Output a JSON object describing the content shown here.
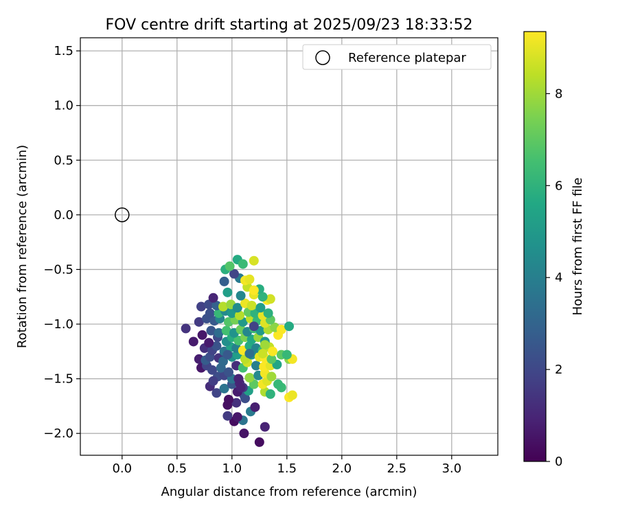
{
  "chart_data": {
    "type": "scatter",
    "title": "FOV centre drift starting at 2025/09/23 18:33:52",
    "xlabel": "Angular distance from reference (arcmin)",
    "ylabel": "Rotation from reference (arcmin)",
    "xlim": [
      -0.38,
      3.42
    ],
    "ylim": [
      -2.2,
      1.62
    ],
    "x_ticks": [
      0.0,
      0.5,
      1.0,
      1.5,
      2.0,
      2.5,
      3.0
    ],
    "x_tick_labels": [
      "0.0",
      "0.5",
      "1.0",
      "1.5",
      "2.0",
      "2.5",
      "3.0"
    ],
    "y_ticks": [
      1.5,
      1.0,
      0.5,
      0.0,
      -0.5,
      -1.0,
      -1.5,
      -2.0
    ],
    "y_tick_labels": [
      "1.5",
      "1.0",
      "0.5",
      "0.0",
      "−0.5",
      "−1.0",
      "−1.5",
      "−2.0"
    ],
    "grid": true,
    "legend": {
      "position": "top-right",
      "entries": [
        "Reference platepar"
      ]
    },
    "reference_point": {
      "x": 0.0,
      "y": 0.0
    },
    "colorbar": {
      "label": "Hours from first FF file",
      "range": [
        0,
        9.35
      ],
      "ticks": [
        0,
        2,
        4,
        6,
        8
      ],
      "tick_labels": [
        "0",
        "2",
        "4",
        "6",
        "8"
      ],
      "colormap": "viridis"
    },
    "points_xyc": [
      [
        1.25,
        -2.08,
        0.3
      ],
      [
        1.11,
        -2.0,
        0.5
      ],
      [
        1.3,
        -1.94,
        0.9
      ],
      [
        1.02,
        -1.89,
        0.3
      ],
      [
        1.1,
        -1.88,
        3.6
      ],
      [
        1.05,
        -1.85,
        0.6
      ],
      [
        0.96,
        -1.84,
        1.6
      ],
      [
        1.17,
        -1.8,
        3.8
      ],
      [
        0.96,
        -1.74,
        0.4
      ],
      [
        1.04,
        -1.72,
        1.3
      ],
      [
        0.97,
        -1.69,
        0.4
      ],
      [
        1.12,
        -1.68,
        2.2
      ],
      [
        1.21,
        -1.76,
        0.8
      ],
      [
        1.11,
        -1.65,
        2.3
      ],
      [
        1.05,
        -1.62,
        0.7
      ],
      [
        0.86,
        -1.63,
        1.9
      ],
      [
        1.15,
        -1.61,
        5.3
      ],
      [
        1.3,
        -1.62,
        8.2
      ],
      [
        1.35,
        -1.64,
        6.0
      ],
      [
        1.52,
        -1.67,
        9.3
      ],
      [
        1.55,
        -1.65,
        9.1
      ],
      [
        1.45,
        -1.58,
        6.3
      ],
      [
        0.8,
        -1.57,
        1.2
      ],
      [
        0.93,
        -1.59,
        3.6
      ],
      [
        1.0,
        -1.55,
        2.5
      ],
      [
        1.07,
        -1.54,
        1.0
      ],
      [
        1.1,
        -1.58,
        1.6
      ],
      [
        1.2,
        -1.55,
        7.0
      ],
      [
        1.28,
        -1.55,
        9.2
      ],
      [
        1.32,
        -1.52,
        8.9
      ],
      [
        1.42,
        -1.55,
        6.2
      ],
      [
        0.87,
        -1.48,
        2.2
      ],
      [
        0.83,
        -1.52,
        1.7
      ],
      [
        0.93,
        -1.47,
        1.9
      ],
      [
        1.0,
        -1.5,
        3.5
      ],
      [
        1.06,
        -1.5,
        0.9
      ],
      [
        1.16,
        -1.49,
        7.8
      ],
      [
        1.24,
        -1.47,
        4.4
      ],
      [
        1.3,
        -1.45,
        9.2
      ],
      [
        1.36,
        -1.48,
        8.0
      ],
      [
        0.72,
        -1.4,
        0.6
      ],
      [
        0.77,
        -1.38,
        1.9
      ],
      [
        0.82,
        -1.42,
        2.0
      ],
      [
        0.9,
        -1.4,
        3.1
      ],
      [
        0.97,
        -1.44,
        2.4
      ],
      [
        1.04,
        -1.38,
        1.2
      ],
      [
        1.1,
        -1.4,
        6.5
      ],
      [
        1.14,
        -1.35,
        8.7
      ],
      [
        1.22,
        -1.38,
        4.0
      ],
      [
        1.29,
        -1.39,
        9.3
      ],
      [
        1.35,
        -1.38,
        9.0
      ],
      [
        1.41,
        -1.37,
        5.5
      ],
      [
        0.7,
        -1.32,
        0.8
      ],
      [
        0.76,
        -1.33,
        2.7
      ],
      [
        0.8,
        -1.3,
        2.2
      ],
      [
        0.88,
        -1.31,
        1.4
      ],
      [
        0.92,
        -1.34,
        3.2
      ],
      [
        1.0,
        -1.3,
        4.6
      ],
      [
        1.05,
        -1.28,
        5.2
      ],
      [
        1.12,
        -1.32,
        8.4
      ],
      [
        1.18,
        -1.28,
        4.7
      ],
      [
        1.25,
        -1.3,
        9.0
      ],
      [
        1.3,
        -1.31,
        9.3
      ],
      [
        1.36,
        -1.32,
        6.9
      ],
      [
        1.45,
        -1.28,
        7.0
      ],
      [
        1.52,
        -1.32,
        7.7
      ],
      [
        1.55,
        -1.32,
        9.2
      ],
      [
        0.75,
        -1.22,
        1.3
      ],
      [
        0.82,
        -1.24,
        1.9
      ],
      [
        0.86,
        -1.2,
        2.4
      ],
      [
        0.93,
        -1.25,
        3.6
      ],
      [
        0.99,
        -1.21,
        5.4
      ],
      [
        1.04,
        -1.22,
        4.0
      ],
      [
        1.1,
        -1.24,
        9.3
      ],
      [
        1.16,
        -1.2,
        5.7
      ],
      [
        1.22,
        -1.22,
        4.2
      ],
      [
        1.28,
        -1.24,
        6.2
      ],
      [
        1.34,
        -1.21,
        8.5
      ],
      [
        1.37,
        -1.25,
        9.3
      ],
      [
        1.5,
        -1.28,
        6.2
      ],
      [
        0.79,
        -1.17,
        0.7
      ],
      [
        0.87,
        -1.12,
        2.1
      ],
      [
        0.95,
        -1.16,
        4.6
      ],
      [
        1.0,
        -1.12,
        5.8
      ],
      [
        1.06,
        -1.15,
        6.6
      ],
      [
        1.12,
        -1.12,
        7.5
      ],
      [
        1.18,
        -1.14,
        5.6
      ],
      [
        1.24,
        -1.12,
        7.9
      ],
      [
        1.3,
        -1.16,
        4.9
      ],
      [
        1.42,
        -1.1,
        9.3
      ],
      [
        0.65,
        -1.16,
        0.7
      ],
      [
        0.73,
        -1.1,
        0.6
      ],
      [
        0.81,
        -1.06,
        2.5
      ],
      [
        0.88,
        -1.08,
        3.3
      ],
      [
        0.95,
        -1.06,
        6.5
      ],
      [
        1.02,
        -1.08,
        4.8
      ],
      [
        1.08,
        -1.05,
        7.2
      ],
      [
        1.14,
        -1.07,
        4.3
      ],
      [
        1.2,
        -1.04,
        6.4
      ],
      [
        1.26,
        -1.06,
        5.0
      ],
      [
        1.33,
        -1.05,
        8.2
      ],
      [
        1.39,
        -1.03,
        7.7
      ],
      [
        1.45,
        -1.05,
        9.3
      ],
      [
        1.52,
        -1.02,
        5.7
      ],
      [
        0.58,
        -1.04,
        1.4
      ],
      [
        0.7,
        -0.98,
        1.6
      ],
      [
        0.77,
        -0.95,
        2.3
      ],
      [
        0.84,
        -0.97,
        2.6
      ],
      [
        0.89,
        -0.95,
        4.2
      ],
      [
        0.97,
        -0.98,
        6.8
      ],
      [
        1.03,
        -0.96,
        7.4
      ],
      [
        1.1,
        -0.98,
        5.0
      ],
      [
        1.17,
        -0.95,
        8.4
      ],
      [
        1.23,
        -0.97,
        6.2
      ],
      [
        1.3,
        -0.99,
        8.9
      ],
      [
        1.35,
        -0.96,
        7.0
      ],
      [
        0.8,
        -0.9,
        2.3
      ],
      [
        0.88,
        -0.9,
        6.2
      ],
      [
        0.94,
        -0.88,
        4.4
      ],
      [
        1.0,
        -0.9,
        5.0
      ],
      [
        1.07,
        -0.92,
        8.3
      ],
      [
        1.15,
        -0.89,
        7.1
      ],
      [
        1.21,
        -0.9,
        6.0
      ],
      [
        1.28,
        -0.92,
        9.0
      ],
      [
        1.33,
        -0.9,
        5.9
      ],
      [
        0.72,
        -0.84,
        1.8
      ],
      [
        0.79,
        -0.82,
        2.1
      ],
      [
        0.86,
        -0.83,
        2.9
      ],
      [
        0.92,
        -0.84,
        8.3
      ],
      [
        0.99,
        -0.82,
        7.9
      ],
      [
        1.05,
        -0.85,
        4.5
      ],
      [
        1.12,
        -0.81,
        9.1
      ],
      [
        1.18,
        -0.83,
        8.6
      ],
      [
        1.26,
        -0.85,
        5.2
      ],
      [
        1.32,
        -0.78,
        9.3
      ],
      [
        1.35,
        -0.77,
        8.7
      ],
      [
        0.83,
        -0.76,
        1.0
      ],
      [
        0.96,
        -0.71,
        5.2
      ],
      [
        1.08,
        -0.74,
        4.3
      ],
      [
        1.2,
        -0.73,
        9.0
      ],
      [
        1.28,
        -0.75,
        6.0
      ],
      [
        1.25,
        -0.68,
        5.8
      ],
      [
        1.14,
        -0.66,
        8.5
      ],
      [
        1.2,
        -0.69,
        9.3
      ],
      [
        0.93,
        -0.61,
        2.8
      ],
      [
        1.07,
        -0.58,
        3.8
      ],
      [
        1.12,
        -0.6,
        9.2
      ],
      [
        1.16,
        -0.59,
        9.0
      ],
      [
        1.02,
        -0.54,
        1.9
      ],
      [
        0.94,
        -0.5,
        5.9
      ],
      [
        0.98,
        -0.47,
        6.8
      ],
      [
        1.05,
        -0.41,
        5.7
      ],
      [
        1.1,
        -0.45,
        6.3
      ],
      [
        1.2,
        -0.42,
        8.8
      ],
      [
        1.3,
        -1.19,
        8.0
      ],
      [
        1.2,
        -1.02,
        1.8
      ],
      [
        1.16,
        -1.27,
        3.4
      ],
      [
        1.28,
        -1.27,
        8.6
      ],
      [
        0.96,
        -1.28,
        2.6
      ],
      [
        1.08,
        -1.58,
        0.9
      ]
    ]
  }
}
